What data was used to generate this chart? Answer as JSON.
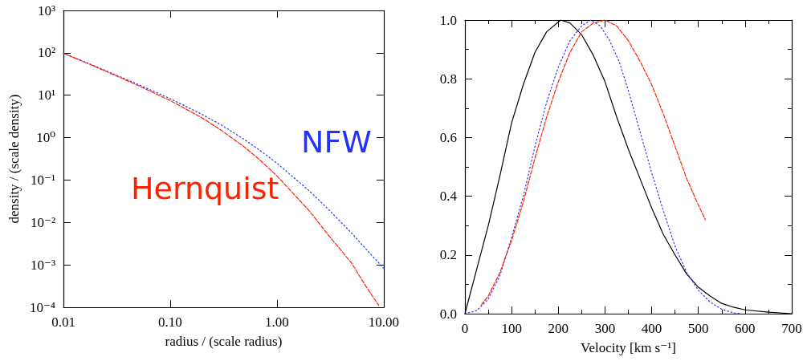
{
  "chart_data": [
    {
      "type": "line",
      "xlabel": "radius / (scale radius)",
      "ylabel": "density / (scale density)",
      "log": "xy",
      "grid": false,
      "marker": "none",
      "xlim": [
        0.01,
        10
      ],
      "xticks": [
        {
          "value": 0.01,
          "label": "0.01"
        },
        {
          "value": 0.1,
          "label": "0.10"
        },
        {
          "value": 1,
          "label": "1.00"
        },
        {
          "value": 10,
          "label": "10.00"
        }
      ],
      "ylim": [
        0.0001,
        1000
      ],
      "yticks": [
        {
          "value": 0.0001,
          "label": "10⁻⁴"
        },
        {
          "value": 0.001,
          "label": "10⁻³"
        },
        {
          "value": 0.01,
          "label": "10⁻²"
        },
        {
          "value": 0.1,
          "label": "10⁻¹"
        },
        {
          "value": 1,
          "label": "10⁰"
        },
        {
          "value": 10,
          "label": "10¹"
        },
        {
          "value": 100,
          "label": "10²"
        },
        {
          "value": 1000,
          "label": "10³"
        }
      ],
      "series": [
        {
          "name": "NFW",
          "color": "#2233ff",
          "line_style": "dotted",
          "x": [
            0.01,
            0.02,
            0.05,
            0.1,
            0.2,
            0.3,
            0.5,
            0.7,
            1,
            2,
            3,
            5,
            7,
            10
          ],
          "values": [
            98,
            48,
            18,
            8.3,
            3.5,
            2.0,
            0.89,
            0.49,
            0.25,
            0.056,
            0.021,
            0.0056,
            0.0022,
            0.00083
          ]
        },
        {
          "name": "Hernquist",
          "color": "#ff2200",
          "line_style": "dashed",
          "x": [
            0.01,
            0.02,
            0.05,
            0.1,
            0.2,
            0.3,
            0.5,
            0.7,
            1,
            2,
            3,
            5,
            7,
            9
          ],
          "values": [
            97,
            47,
            17,
            7.5,
            2.9,
            1.5,
            0.59,
            0.29,
            0.125,
            0.019,
            0.0052,
            0.0011,
            0.00028,
            0.00011
          ]
        }
      ]
    },
    {
      "type": "line",
      "xlabel": "Velocity [km s⁻¹]",
      "grid": false,
      "marker": "none",
      "xlim": [
        0,
        700
      ],
      "xticks": [
        0,
        100,
        200,
        300,
        400,
        500,
        600,
        700
      ],
      "ylim": [
        0,
        1
      ],
      "yticks": [
        {
          "value": 0,
          "label": "0.0"
        },
        {
          "value": 0.2,
          "label": "0.2"
        },
        {
          "value": 0.4,
          "label": "0.4"
        },
        {
          "value": 0.6,
          "label": "0.6"
        },
        {
          "value": 0.8,
          "label": "0.8"
        },
        {
          "value": 1,
          "label": "1.0"
        }
      ],
      "series": [
        {
          "color": "#000000",
          "line_style": "solid",
          "x": [
            0,
            25,
            50,
            75,
            100,
            125,
            150,
            175,
            205,
            225,
            250,
            275,
            300,
            325,
            350,
            375,
            400,
            425,
            450,
            475,
            500,
            525,
            550,
            575,
            600,
            650,
            700
          ],
          "values": [
            0,
            0.15,
            0.3,
            0.47,
            0.65,
            0.78,
            0.89,
            0.96,
            1.0,
            0.99,
            0.95,
            0.88,
            0.79,
            0.67,
            0.56,
            0.46,
            0.36,
            0.27,
            0.2,
            0.135,
            0.09,
            0.06,
            0.035,
            0.022,
            0.013,
            0.005,
            0
          ]
        },
        {
          "color": "#3333ff",
          "line_style": "dotted",
          "x": [
            0,
            25,
            50,
            75,
            100,
            125,
            150,
            175,
            200,
            225,
            250,
            270,
            290,
            310,
            330,
            350,
            375,
            400,
            425,
            450,
            475,
            500,
            525,
            550,
            575,
            590
          ],
          "values": [
            0,
            0.01,
            0.05,
            0.13,
            0.26,
            0.4,
            0.57,
            0.72,
            0.84,
            0.93,
            0.98,
            1.0,
            0.98,
            0.93,
            0.86,
            0.76,
            0.62,
            0.48,
            0.35,
            0.23,
            0.14,
            0.08,
            0.04,
            0.015,
            0.003,
            0
          ]
        },
        {
          "color": "#ff2200",
          "line_style": "dashed",
          "x": [
            35,
            50,
            75,
            100,
            125,
            150,
            175,
            200,
            225,
            250,
            275,
            300,
            325,
            350,
            375,
            400,
            425,
            450,
            475,
            500,
            515
          ],
          "values": [
            0.03,
            0.06,
            0.14,
            0.25,
            0.38,
            0.53,
            0.67,
            0.79,
            0.89,
            0.96,
            0.99,
            1.0,
            0.98,
            0.93,
            0.86,
            0.78,
            0.68,
            0.57,
            0.46,
            0.37,
            0.32
          ]
        }
      ]
    }
  ]
}
